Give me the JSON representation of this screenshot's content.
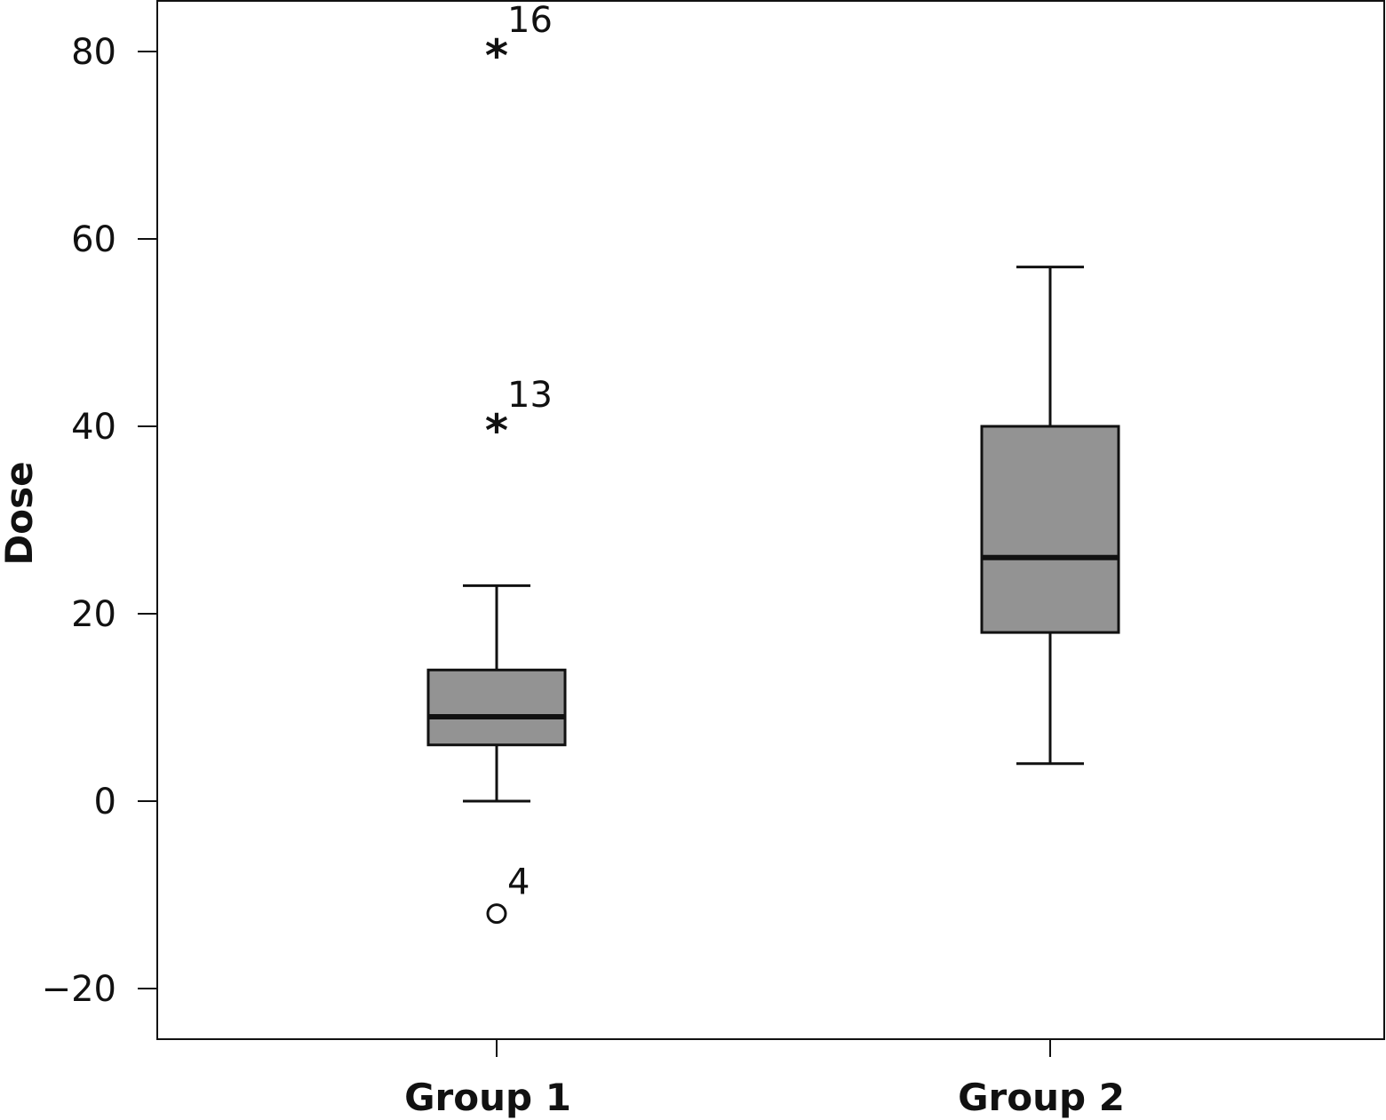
{
  "chart_data": {
    "type": "boxplot",
    "title": "",
    "xlabel": "",
    "ylabel": "Dose",
    "ylim": [
      -26,
      85
    ],
    "yticks": [
      -20,
      0,
      20,
      40,
      60,
      80
    ],
    "ytick_labels": [
      "−20",
      "0",
      "20",
      "40",
      "60",
      "80"
    ],
    "grid": false,
    "categories": [
      "Group 1",
      "Group 2"
    ],
    "boxes": [
      {
        "category": "Group 1",
        "whisker_low": 0,
        "q1": 6,
        "median": 9,
        "q3": 14,
        "whisker_high": 23,
        "outliers": [
          {
            "value": -12,
            "label": "4",
            "marker": "circle"
          },
          {
            "value": 40,
            "label": "13",
            "marker": "star"
          },
          {
            "value": 80,
            "label": "16",
            "marker": "star"
          }
        ]
      },
      {
        "category": "Group 2",
        "whisker_low": 4,
        "q1": 18,
        "median": 26,
        "q3": 40,
        "whisker_high": 57,
        "outliers": []
      }
    ],
    "colors": {
      "box_fill": "#939393",
      "stroke": "#111111",
      "background": "#ffffff"
    }
  }
}
